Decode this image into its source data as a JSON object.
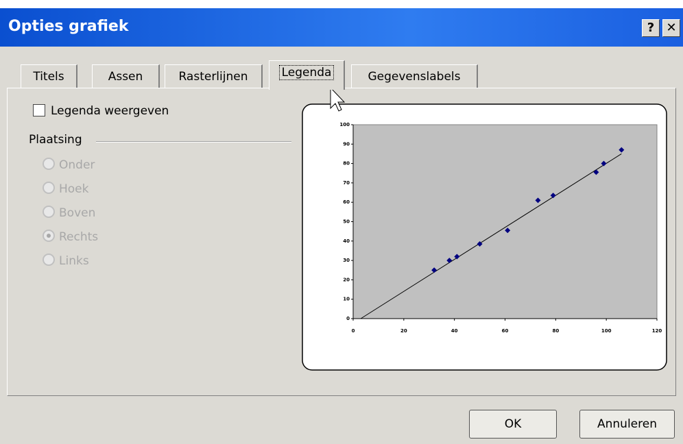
{
  "dialog": {
    "title": "Opties grafiek",
    "help_button": "?",
    "close_button": "✕",
    "tabs": [
      "Titels",
      "Assen",
      "Rasterlijnen",
      "Legenda",
      "Gegevenslabels"
    ],
    "selected_tab": 3,
    "show_legend": {
      "label": "Legenda weergeven",
      "checked": false
    },
    "placement": {
      "label": "Plaatsing",
      "options": [
        "Onder",
        "Hoek",
        "Boven",
        "Rechts",
        "Links"
      ],
      "selected": 3,
      "enabled": false
    },
    "buttons": [
      "OK",
      "Annuleren"
    ]
  },
  "chart_data": {
    "type": "scatter",
    "color": "#000080",
    "x": [
      32,
      38,
      41,
      50,
      61,
      73,
      79,
      96,
      99,
      106
    ],
    "values": [
      25,
      30,
      32,
      38.5,
      45.5,
      61,
      63.5,
      75.5,
      80,
      87
    ],
    "trendline": {
      "x": [
        3,
        106
      ],
      "values": [
        0,
        85
      ]
    },
    "xlim": [
      0,
      120
    ],
    "xticks": [
      0,
      20,
      40,
      60,
      80,
      100,
      120
    ],
    "ylim": [
      0,
      100
    ],
    "yticks": [
      0,
      10,
      20,
      30,
      40,
      50,
      60,
      70,
      80,
      90,
      100
    ]
  }
}
